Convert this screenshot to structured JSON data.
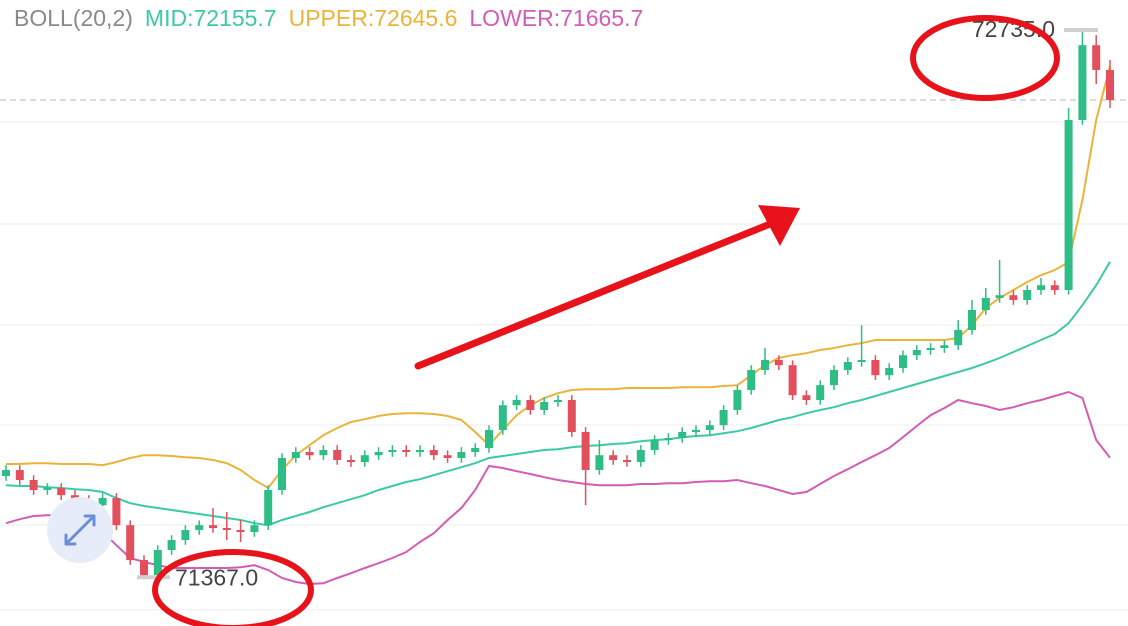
{
  "chart_data": {
    "type": "candlestick",
    "indicator": "BOLL(20,2)",
    "ylim": [
      71245,
      72810
    ],
    "up_color": "#2ebd85",
    "down_color": "#e2505d",
    "open": [
      71620,
      71635,
      71610,
      71585,
      71590,
      71572,
      71560,
      71547,
      71565,
      71497,
      71410,
      71372,
      71435,
      71460,
      71485,
      71497,
      71490,
      71485,
      71480,
      71497,
      71585,
      71665,
      71680,
      71672,
      71685,
      71660,
      71655,
      71672,
      71680,
      71685,
      71680,
      71685,
      71672,
      71665,
      71680,
      71690,
      71735,
      71797,
      71810,
      71785,
      71805,
      71810,
      71730,
      71635,
      71672,
      71660,
      71655,
      71685,
      71710,
      71715,
      71730,
      71735,
      71747,
      71785,
      71835,
      71885,
      71910,
      71897,
      71822,
      71810,
      71847,
      71885,
      71905,
      71910,
      71872,
      71890,
      71922,
      71935,
      71940,
      71947,
      71985,
      72035,
      72065,
      72072,
      72060,
      72085,
      72097,
      72085,
      72510,
      72697,
      72635
    ],
    "high": [
      71647,
      71647,
      71622,
      71602,
      71602,
      71584,
      71572,
      71577,
      71577,
      71509,
      71422,
      71447,
      71472,
      71497,
      71509,
      71540,
      71530,
      71510,
      71509,
      71597,
      71677,
      71692,
      71692,
      71697,
      71697,
      71672,
      71684,
      71692,
      71697,
      71697,
      71697,
      71697,
      71684,
      71692,
      71702,
      71747,
      71809,
      71822,
      71822,
      71817,
      71822,
      71822,
      71742,
      71710,
      71684,
      71672,
      71697,
      71722,
      71727,
      71742,
      71747,
      71759,
      71797,
      71847,
      71897,
      71940,
      71922,
      71909,
      71834,
      71859,
      71897,
      71917,
      71997,
      71922,
      71902,
      71934,
      71947,
      71952,
      71959,
      72010,
      72060,
      72090,
      72160,
      72084,
      72097,
      72115,
      72109,
      72540,
      72735,
      72722,
      72660
    ],
    "low": [
      71608,
      71598,
      71573,
      71573,
      71560,
      71548,
      71535,
      71535,
      71485,
      71398,
      71367,
      71370,
      71423,
      71448,
      71473,
      71478,
      71460,
      71455,
      71468,
      71485,
      71573,
      71653,
      71660,
      71660,
      71648,
      71643,
      71643,
      71660,
      71668,
      71668,
      71668,
      71660,
      71653,
      71653,
      71668,
      71678,
      71723,
      71785,
      71773,
      71773,
      71793,
      71718,
      71547,
      71623,
      71648,
      71643,
      71643,
      71673,
      71698,
      71703,
      71718,
      71723,
      71735,
      71773,
      71823,
      71873,
      71885,
      71810,
      71798,
      71798,
      71835,
      71873,
      71893,
      71860,
      71860,
      71878,
      71910,
      71923,
      71928,
      71935,
      71973,
      72023,
      72053,
      72048,
      72048,
      72073,
      72073,
      72073,
      72498,
      72600,
      72540
    ],
    "close": [
      71635,
      71610,
      71585,
      71590,
      71572,
      71560,
      71547,
      71565,
      71497,
      71410,
      71372,
      71435,
      71460,
      71485,
      71497,
      71490,
      71485,
      71480,
      71497,
      71585,
      71665,
      71680,
      71672,
      71685,
      71660,
      71655,
      71672,
      71680,
      71685,
      71680,
      71685,
      71672,
      71665,
      71680,
      71690,
      71735,
      71797,
      71810,
      71785,
      71805,
      71810,
      71730,
      71635,
      71672,
      71660,
      71655,
      71685,
      71710,
      71715,
      71730,
      71735,
      71747,
      71785,
      71835,
      71885,
      71910,
      71897,
      71822,
      71810,
      71847,
      71885,
      71905,
      71910,
      71872,
      71890,
      71922,
      71935,
      71940,
      71947,
      71985,
      72035,
      72065,
      72072,
      72060,
      72085,
      72097,
      72085,
      72510,
      72697,
      72635,
      72560
    ],
    "series": [
      {
        "name": "MID",
        "legend_label": "MID:72155.7",
        "legend_value": 72155.7,
        "color": "#3cc9a6",
        "values": [
          71597,
          71595,
          71595,
          71592,
          71590,
          71587,
          71585,
          71580,
          71565,
          71552,
          71545,
          71540,
          71535,
          71530,
          71525,
          71520,
          71515,
          71510,
          71502,
          71497,
          71510,
          71520,
          71530,
          71542,
          71552,
          71562,
          71572,
          71585,
          71595,
          71605,
          71612,
          71622,
          71632,
          71642,
          71652,
          71665,
          71670,
          71675,
          71680,
          71685,
          71687,
          71692,
          71695,
          71697,
          71700,
          71702,
          71707,
          71710,
          71712,
          71717,
          71720,
          71722,
          71727,
          71732,
          71740,
          71750,
          71760,
          71767,
          71777,
          71785,
          71792,
          71802,
          71810,
          71820,
          71830,
          71840,
          71850,
          71860,
          71870,
          71880,
          71890,
          71902,
          71915,
          71930,
          71945,
          71960,
          71975,
          72002,
          72047,
          72097,
          72155.7
        ]
      },
      {
        "name": "UPPER",
        "legend_label": "UPPER:72645.6",
        "legend_value": 72645.6,
        "color": "#ebb33a",
        "values": [
          71650,
          71650,
          71652,
          71652,
          71650,
          71650,
          71650,
          71647,
          71655,
          71665,
          71672,
          71672,
          71670,
          71667,
          71665,
          71660,
          71652,
          71635,
          71610,
          71590,
          71635,
          71672,
          71697,
          71722,
          71740,
          71755,
          71762,
          71770,
          71775,
          71777,
          71777,
          71775,
          71770,
          71760,
          71730,
          71697,
          71735,
          71772,
          71797,
          71815,
          71827,
          71835,
          71837,
          71837,
          71837,
          71840,
          71840,
          71840,
          71840,
          71842,
          71842,
          71842,
          71845,
          71847,
          71872,
          71897,
          71915,
          71922,
          71927,
          71935,
          71940,
          71947,
          71952,
          71960,
          71960,
          71960,
          71960,
          71960,
          71960,
          71965,
          71997,
          72040,
          72065,
          72085,
          72105,
          72122,
          72135,
          72155,
          72310,
          72510,
          72645.6
        ]
      },
      {
        "name": "LOWER",
        "legend_label": "LOWER:71665.7",
        "legend_value": 71665.7,
        "color": "#d45cb4",
        "values": [
          71502,
          71512,
          71520,
          71522,
          71522,
          71517,
          71505,
          71480,
          71447,
          71415,
          71405,
          71397,
          71390,
          71390,
          71390,
          71390,
          71390,
          71392,
          71397,
          71385,
          71365,
          71355,
          71350,
          71352,
          71365,
          71377,
          71390,
          71402,
          71415,
          71430,
          71455,
          71477,
          71510,
          71540,
          71585,
          71645,
          71640,
          71632,
          71625,
          71617,
          71610,
          71605,
          71600,
          71597,
          71597,
          71597,
          71600,
          71600,
          71602,
          71602,
          71605,
          71607,
          71607,
          71610,
          71602,
          71595,
          71585,
          71575,
          71580,
          71600,
          71620,
          71637,
          71655,
          71672,
          71690,
          71717,
          71745,
          71772,
          71790,
          71810,
          71802,
          71795,
          71785,
          71792,
          71802,
          71810,
          71820,
          71830,
          71815,
          71710,
          71665.7
        ]
      }
    ],
    "annotations": [
      {
        "value": 72735,
        "label": "72735.0"
      },
      {
        "value": 71367,
        "label": "71367.0"
      }
    ]
  }
}
